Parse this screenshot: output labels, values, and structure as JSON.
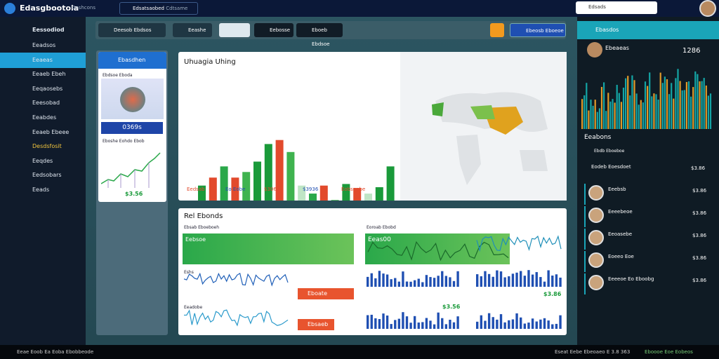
{
  "header": {
    "logo": "Edasgbootola",
    "tag": "Deshcons",
    "tab": "Edsatsaobed",
    "tab2": "Cdtsame",
    "search": "Edsads"
  },
  "sidebar": {
    "title": "Eessodiod",
    "items": [
      "Eeadsos",
      "Eeaeas",
      "Eeaeb Ebeh",
      "Eeqaosebs",
      "Eeesobad",
      "Eeabdes",
      "Eeaeb Ebeee",
      "Desdsfosit",
      "Eeqdes",
      "Eedsobars",
      "Eeads"
    ]
  },
  "toolbar": {
    "b1": "Deesob Ebdsos",
    "b2": "Eeashe",
    "b3": "Eebosse",
    "b4": "Eboeb Ebdsoe",
    "b5": "Ebeosb Eboeoe"
  },
  "left_card": {
    "title": "Ebasdhen",
    "label": "Ebdsoe Eboda",
    "value": "0369s",
    "caption": "Eboshe Eohdo Ebob",
    "foot": "$3.56"
  },
  "usage": {
    "title": "Uhuagia Uhing",
    "legend": [
      "Eedsab",
      "Eo Eobe",
      "$306",
      "$3936",
      "Eobsnobe"
    ],
    "values": [
      38,
      48,
      62,
      48,
      55,
      68,
      90,
      95,
      80,
      38,
      28,
      38,
      20,
      40,
      35,
      28,
      36,
      62
    ],
    "colors": [
      "#1a9a3a",
      "#e24a2c",
      "#2aa84a",
      "#e24a2c",
      "#3fb34f",
      "#1a9a3a",
      "#1a9a3a",
      "#e24a2c",
      "#3fb34f",
      "#bfe5c5",
      "#2aa84a",
      "#e24a2c",
      "#3fb34f",
      "#1a9a3a",
      "#e24a2c",
      "#bfe5c5",
      "#1a9a3a",
      "#1a9a3a"
    ],
    "ylim": [
      0,
      100
    ]
  },
  "stands": {
    "title": "Rel Ebonds",
    "left": "Ebsab Eboeboeh",
    "right": "Eoroab Ebobd",
    "green1": "Eebsoe",
    "green2": "Eeas00",
    "red1": "Eboate",
    "red2": "Ebsaeb",
    "w1": "Eshs",
    "w2": "Eeadobe",
    "v1": "$3.56",
    "v2": "$3.86"
  },
  "right": {
    "title": "Ebasdos",
    "user": "Ebeaeas",
    "total": "1286",
    "section": "Eeabons",
    "sub": "Ebdb Eboeboe",
    "list": [
      {
        "name": "Eodeb Eoesdoet",
        "v": "$3.86"
      },
      {
        "name": "Eeebsb",
        "v": "$3.86"
      },
      {
        "name": "Eeeebeoe",
        "v": "$3.86"
      },
      {
        "name": "Eeoasebe",
        "v": "$3.86"
      },
      {
        "name": "Eoeeo Eoe",
        "v": "$3.86"
      },
      {
        "name": "Eeeeoe Eo Eboobg",
        "v": "$3.86"
      }
    ]
  },
  "status": {
    "left": "Eeae Eoob Ea Eoba Ebobbeode",
    "right": "Eseat Eebe Ebeoaeo E 3.8 363",
    "right2": "Eboooe Eoe Eobeos"
  }
}
